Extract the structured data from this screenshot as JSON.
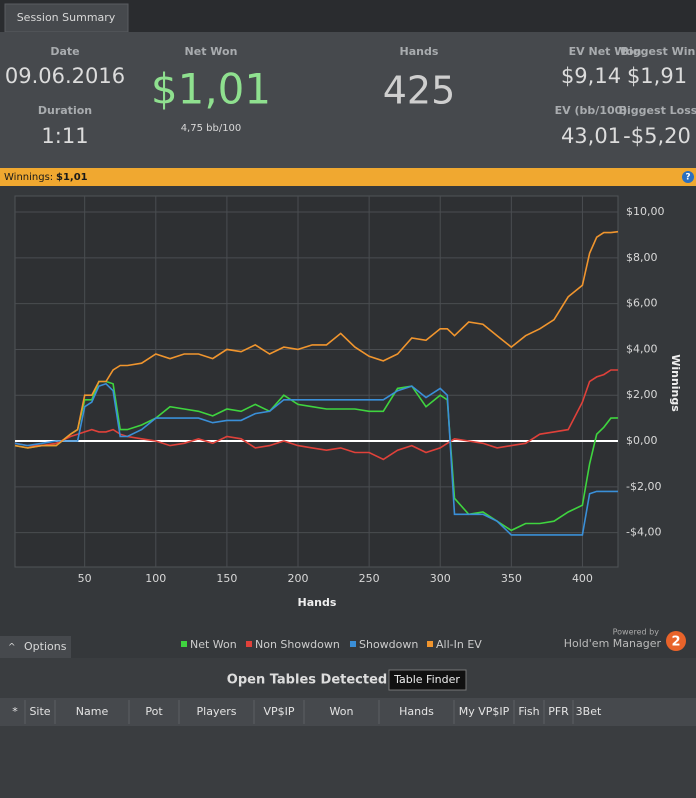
{
  "tab": "Session Summary",
  "stats": {
    "date_label": "Date",
    "date": "09.06.2016",
    "duration_label": "Duration",
    "duration": "1:11",
    "net_won_label": "Net Won",
    "net_won": "$1,01",
    "bb100": "4,75 bb/100",
    "hands_label": "Hands",
    "hands": "425",
    "ev_net_won_label": "EV Net Won",
    "ev_net_won": "$9,14",
    "biggest_win_label": "Biggest Win",
    "biggest_win": "$1,91",
    "ev_bb100_label": "EV (bb/100)",
    "ev_bb100": "43,01",
    "biggest_loss_label": "Biggest Loss",
    "biggest_loss": "-$5,20"
  },
  "banner": {
    "label": "Winnings:",
    "value": "$1,01",
    "help": "?"
  },
  "chart_data": {
    "type": "line",
    "xlabel": "Hands",
    "ylabel": "Winnings",
    "x": [
      1,
      10,
      20,
      30,
      40,
      45,
      50,
      55,
      60,
      65,
      70,
      75,
      80,
      90,
      100,
      110,
      120,
      130,
      140,
      150,
      160,
      170,
      180,
      190,
      200,
      210,
      220,
      230,
      240,
      250,
      260,
      270,
      280,
      290,
      300,
      305,
      310,
      320,
      330,
      340,
      350,
      360,
      370,
      380,
      390,
      400,
      405,
      410,
      415,
      420,
      425
    ],
    "series": [
      {
        "name": "Net Won",
        "color": "#3fd43f",
        "values": [
          -0.2,
          -0.3,
          -0.2,
          -0.2,
          0.3,
          0.5,
          1.8,
          1.8,
          2.6,
          2.6,
          2.5,
          0.5,
          0.5,
          0.7,
          1.0,
          1.5,
          1.4,
          1.3,
          1.1,
          1.4,
          1.3,
          1.6,
          1.3,
          2.0,
          1.6,
          1.5,
          1.4,
          1.4,
          1.4,
          1.3,
          1.3,
          2.3,
          2.4,
          1.5,
          2.0,
          1.8,
          -2.5,
          -3.2,
          -3.1,
          -3.5,
          -3.9,
          -3.6,
          -3.6,
          -3.5,
          -3.1,
          -2.8,
          -1.0,
          0.3,
          0.6,
          1.0,
          1.01
        ]
      },
      {
        "name": "Non Showdown",
        "color": "#e0413a",
        "values": [
          -0.1,
          -0.2,
          -0.2,
          -0.1,
          0.2,
          0.3,
          0.4,
          0.5,
          0.4,
          0.4,
          0.5,
          0.3,
          0.2,
          0.1,
          0.0,
          -0.2,
          -0.1,
          0.1,
          -0.1,
          0.2,
          0.1,
          -0.3,
          -0.2,
          0.0,
          -0.2,
          -0.3,
          -0.4,
          -0.3,
          -0.5,
          -0.5,
          -0.8,
          -0.4,
          -0.2,
          -0.5,
          -0.3,
          -0.1,
          0.1,
          0.0,
          -0.1,
          -0.3,
          -0.2,
          -0.1,
          0.3,
          0.4,
          0.5,
          1.7,
          2.6,
          2.8,
          2.9,
          3.1,
          3.1
        ]
      },
      {
        "name": "Showdown",
        "color": "#3a8fd8",
        "values": [
          -0.1,
          -0.2,
          -0.1,
          0,
          0,
          0,
          1.5,
          1.7,
          2.4,
          2.5,
          2.2,
          0.2,
          0.2,
          0.5,
          1.0,
          1.0,
          1.0,
          1.0,
          0.8,
          0.9,
          0.9,
          1.2,
          1.3,
          1.8,
          1.8,
          1.8,
          1.8,
          1.8,
          1.8,
          1.8,
          1.8,
          2.2,
          2.4,
          1.9,
          2.3,
          2.0,
          -3.2,
          -3.2,
          -3.2,
          -3.5,
          -4.1,
          -4.1,
          -4.1,
          -4.1,
          -4.1,
          -4.1,
          -2.3,
          -2.2,
          -2.2,
          -2.2,
          -2.2
        ]
      },
      {
        "name": "All-In EV",
        "color": "#f0952e",
        "values": [
          -0.2,
          -0.3,
          -0.2,
          -0.2,
          0.3,
          0.5,
          2.0,
          2.0,
          2.6,
          2.6,
          3.1,
          3.3,
          3.3,
          3.4,
          3.8,
          3.6,
          3.8,
          3.8,
          3.6,
          4.0,
          3.9,
          4.2,
          3.8,
          4.1,
          4.0,
          4.2,
          4.2,
          4.7,
          4.1,
          3.7,
          3.5,
          3.8,
          4.5,
          4.4,
          4.9,
          4.9,
          4.6,
          5.2,
          5.1,
          4.6,
          4.1,
          4.6,
          4.9,
          5.3,
          6.3,
          6.8,
          8.2,
          8.9,
          9.1,
          9.1,
          9.14
        ]
      }
    ],
    "xlim": [
      1,
      425
    ],
    "xticks": [
      50,
      100,
      150,
      200,
      250,
      300,
      350,
      400
    ],
    "ylim": [
      -5.5,
      10.7
    ],
    "yticks": [
      {
        "value": 10,
        "label": "$10,00"
      },
      {
        "value": 8,
        "label": "$8,00"
      },
      {
        "value": 6,
        "label": "$6,00"
      },
      {
        "value": 4,
        "label": "$4,00"
      },
      {
        "value": 2,
        "label": "$2,00"
      },
      {
        "value": 0,
        "label": "$0,00"
      },
      {
        "value": -2,
        "label": "-$2,00"
      },
      {
        "value": -4,
        "label": "-$4,00"
      }
    ],
    "grid": true,
    "legend": "bottom"
  },
  "options": "Options",
  "powered_by": "Powered by",
  "brand": "Hold'em Manager",
  "brand_num": "2",
  "open_tables": {
    "title": "Open Tables Detected",
    "button": "Table Finder",
    "columns": [
      "*",
      "Site",
      "Name",
      "Pot",
      "Players",
      "VP$IP",
      "Won",
      "Hands",
      "My VP$IP",
      "Fish",
      "PFR",
      "3Bet"
    ]
  }
}
